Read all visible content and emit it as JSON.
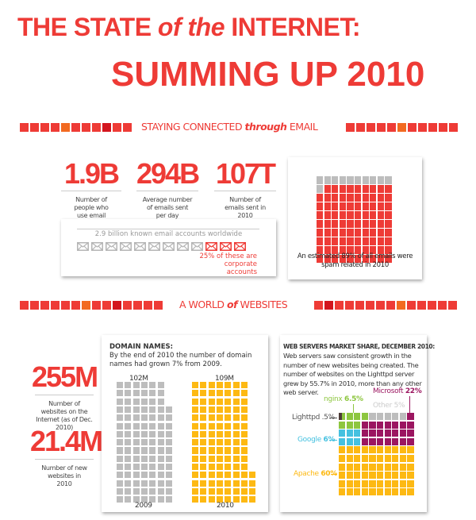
{
  "title": {
    "line1_a": "THE STATE ",
    "line1_b": "of the",
    "line1_c": " INTERNET:",
    "line2": "SUMMING UP 2010"
  },
  "colors": {
    "red": "#ee3b36",
    "dark_red": "#d3151e",
    "orange": "#f26a21",
    "gray": "#bdbdbd",
    "yellow": "#fdb913",
    "magenta": "#9b1560",
    "green": "#8dc63f",
    "cyan": "#45c1e0",
    "lighttpd": "#4d3b38"
  },
  "email": {
    "section_title": {
      "a": "STAYING CONNECTED ",
      "b": "through",
      "c": " EMAIL"
    },
    "stats": [
      {
        "value": "1.9B",
        "caption": "Number of people who use email globally"
      },
      {
        "value": "294B",
        "caption": "Average number of emails sent per day"
      },
      {
        "value": "107T",
        "caption": "Number of emails sent in 2010"
      }
    ],
    "accounts": {
      "label": "2.9 billion known email accounts worldwide",
      "icon": "envelope-icon",
      "total_icons": 12,
      "corporate_icons": 3,
      "note": "25% of these are corporate accounts"
    },
    "spam": {
      "percent": 89,
      "caption": "An estimated 89% of all emails were spam related in 2010"
    }
  },
  "websites": {
    "section_title": {
      "a": "A WORLD ",
      "b": "of",
      "c": " WEBSITES"
    },
    "stats": [
      {
        "value": "255M",
        "caption": "Number of websites on the Internet (as of Dec. 2010)"
      },
      {
        "value": "21.4M",
        "caption": "Number of new websites in 2010"
      }
    ],
    "domains": {
      "heading": "DOMAIN NAMES:",
      "text": "By the end of 2010 the number of domain names had grown 7% from 2009.",
      "bars": [
        {
          "year": "2009",
          "label": "102M",
          "value": 102
        },
        {
          "year": "2010",
          "label": "109M",
          "value": 109
        }
      ]
    },
    "servers": {
      "heading": "WEB SERVERS MARKET SHARE, DECEMBER 2010:",
      "text": "Web servers saw consistent growth in the number of new websites being created. The number of websites on the Lighttpd server grew by 55.7% in 2010, more than any other web server.",
      "shares": [
        {
          "name": "Microsoft",
          "pct": "22%",
          "value": 22
        },
        {
          "name": "nginx",
          "pct": "6.5%",
          "value": 6.5
        },
        {
          "name": "Other",
          "pct": "5%",
          "value": 5
        },
        {
          "name": "Lighttpd",
          "pct": ".5%",
          "value": 0.5
        },
        {
          "name": "Google",
          "pct": "6%",
          "value": 6
        },
        {
          "name": "Apache",
          "pct": "60%",
          "value": 60
        }
      ]
    }
  }
}
